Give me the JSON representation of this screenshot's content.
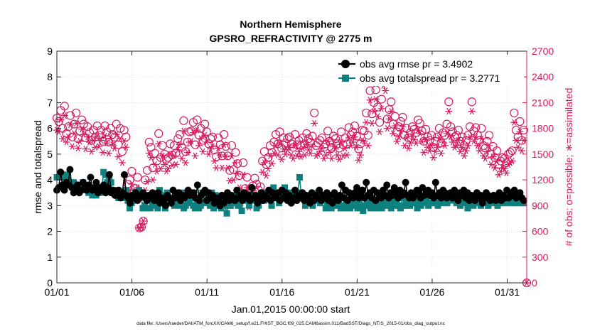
{
  "chart_data": {
    "type": "line",
    "title": "Northern Hemisphere",
    "subtitle": "GPSRO_REFRACTIVITY @ 2775 m",
    "xlabel": "Jan.01,2015 00:00:00 start",
    "ylabel_left": "rmse and totalspread",
    "ylabel_right": "# of obs: o=possible; ∗=assimilated",
    "footer": "data file: /Users/raeder/DAI/ATM_forcXX/CAM6_setup/f.e21.FHIST_BGC.f09_025.CAM6assim.011/BadSST/Diags_NTrS_2015-01/obs_diag_output.nc",
    "xlim": [
      0,
      31.3
    ],
    "ylim_left": [
      0,
      9
    ],
    "ylim_right": [
      0,
      2700
    ],
    "x_ticks": [
      0,
      5,
      10,
      15,
      20,
      25,
      30
    ],
    "x_tick_labels": [
      "01/01",
      "01/06",
      "01/11",
      "01/16",
      "01/21",
      "01/26",
      "01/31"
    ],
    "y_ticks_left": [
      "0",
      "1",
      "2",
      "3",
      "4",
      "5",
      "6",
      "7",
      "8",
      "9"
    ],
    "y_ticks_right": [
      "0",
      "300",
      "600",
      "900",
      "1200",
      "1500",
      "1800",
      "2100",
      "2400",
      "2700"
    ],
    "colors": {
      "rmse": "#000000",
      "spread": "#0f8080",
      "obs": "#d81b60"
    },
    "series": [
      {
        "name": "obs avg rmse pr = 3.4902",
        "axis": "left",
        "values": [
          3.6,
          3.7,
          4.3,
          3.8,
          3.6,
          3.9,
          3.8,
          4.4,
          3.7,
          3.5,
          3.6,
          3.8,
          3.5,
          3.6,
          3.9,
          3.7,
          3.6,
          3.8,
          4.1,
          3.6,
          3.7,
          3.9,
          3.5,
          3.7,
          3.6,
          3.8,
          3.5,
          3.7,
          4.2,
          3.5,
          3.6,
          3.4,
          3.5,
          3.6,
          3.3,
          3.5,
          4.2,
          3.4,
          3.3,
          3.1,
          3.4,
          3.3,
          3.5,
          3.2,
          3.3,
          3.4,
          3.5,
          3.3,
          3.2,
          3.4,
          3.3,
          3.5,
          3.2,
          3.3,
          3.5,
          3.1,
          3.3,
          3.2,
          3.0,
          3.4,
          3.3,
          3.1,
          3.6,
          3.3,
          3.4,
          3.5,
          3.2,
          3.4,
          3.3,
          3.4,
          3.6,
          3.4,
          3.5,
          3.5,
          3.3,
          3.8,
          3.2,
          3.4,
          3.5,
          3.6,
          3.2,
          3.5,
          3.3,
          3.4,
          3.1,
          3.3,
          3.2,
          3.0,
          3.4,
          3.1,
          3.3,
          3.5,
          3.2,
          3.4,
          3.3,
          3.2,
          3.6,
          3.3,
          3.4,
          3.2,
          3.5,
          3.3,
          3.4,
          3.2,
          3.7,
          3.3,
          3.4,
          3.1,
          3.3,
          3.5,
          3.2,
          3.4,
          3.3,
          3.6,
          3.2,
          3.5,
          3.3,
          3.4,
          3.5,
          3.2,
          3.6,
          3.3,
          3.5,
          3.2,
          3.4,
          3.1,
          3.3,
          3.6,
          3.2,
          3.4,
          3.3,
          3.5,
          3.2,
          3.4,
          3.3,
          3.1,
          3.5,
          3.2,
          3.4,
          3.3,
          3.6,
          3.2,
          3.4,
          3.3,
          3.5,
          3.2,
          3.4,
          3.1,
          3.5,
          3.3,
          3.2,
          3.4,
          3.8,
          3.3,
          3.6,
          3.2,
          3.5,
          3.4,
          3.3,
          3.5,
          3.7,
          3.3,
          3.5,
          3.6,
          3.3,
          3.9,
          3.4,
          3.5,
          3.3,
          3.6,
          3.2,
          3.5,
          3.4,
          3.3,
          3.6,
          3.4,
          3.8,
          3.3,
          3.5,
          3.4,
          3.7,
          3.5,
          3.3,
          3.6,
          3.4,
          3.5,
          3.9,
          3.4,
          3.3,
          3.5,
          3.3,
          3.4,
          3.6,
          3.5,
          3.3,
          3.7,
          3.4,
          3.5,
          3.6,
          3.4,
          3.5,
          3.3,
          3.9,
          3.4,
          3.5,
          3.3,
          3.6,
          3.5,
          3.3,
          3.4,
          3.5,
          3.3,
          3.6,
          3.4,
          3.2,
          3.5,
          3.4,
          3.6,
          3.3,
          3.5,
          3.2,
          3.4,
          3.3,
          3.2,
          3.5,
          3.3,
          3.4,
          3.1,
          3.3,
          3.5,
          3.4,
          3.2,
          3.3,
          3.4,
          3.2,
          3.3,
          3.5,
          3.2,
          3.4,
          3.3,
          3.6,
          3.3,
          3.5,
          3.4,
          3.6,
          3.3,
          3.4,
          3.5,
          3.3,
          3.2
        ]
      },
      {
        "name": "obs avg totalspread pr = 3.2771",
        "axis": "left",
        "values": [
          4.1,
          4.1,
          4.2,
          4.2,
          4.1,
          4.2,
          4.0,
          3.9,
          3.8,
          3.9,
          3.8,
          3.6,
          3.8,
          3.7,
          3.9,
          3.6,
          3.7,
          3.5,
          3.6,
          3.4,
          3.7,
          3.4,
          3.6,
          3.5,
          3.6,
          4.3,
          4.2,
          3.9,
          4.1,
          3.9,
          3.5,
          3.6,
          3.5,
          3.3,
          3.4,
          3.5,
          3.3,
          3.6,
          3.2,
          2.9,
          3.1,
          3.2,
          3.5,
          3.5,
          3.6,
          3.5,
          2.9,
          3.0,
          2.9,
          3.4,
          2.9,
          3.1,
          3.0,
          3.2,
          2.9,
          3.6,
          3.4,
          3.2,
          2.9,
          3.5,
          3.1,
          3.3,
          3.2,
          3.0,
          3.5,
          3.2,
          3.0,
          3.5,
          2.9,
          3.0,
          3.2,
          3.1,
          3.3,
          3.0,
          2.9,
          3.1,
          2.9,
          3.0,
          3.5,
          3.1,
          3.2,
          3.3,
          3.0,
          3.5,
          2.9,
          3.4,
          3.0,
          3.1,
          2.9,
          3.3,
          3.0,
          2.7,
          3.3,
          3.0,
          3.4,
          3.1,
          3.2,
          3.0,
          3.5,
          2.8,
          3.4,
          3.2,
          3.3,
          3.0,
          3.4,
          3.2,
          3.3,
          2.9,
          3.0,
          3.2,
          3.5,
          3.2,
          3.3,
          3.3,
          3.5,
          3.0,
          3.7,
          3.3,
          3.5,
          3.1,
          3.3,
          3.6,
          3.7,
          3.3,
          3.5,
          3.3,
          3.2,
          3.4,
          3.2,
          3.5,
          4.1,
          3.3,
          3.4,
          3.0,
          3.3,
          3.2,
          3.4,
          3.0,
          3.3,
          3.2,
          3.5,
          3.1,
          3.3,
          3.2,
          2.9,
          3.0,
          3.2,
          2.9,
          3.0,
          3.1,
          3.0,
          3.2,
          2.9,
          3.0,
          2.9,
          3.1,
          3.0,
          2.9,
          3.0,
          3.2,
          3.0,
          2.9,
          3.1,
          3.0,
          2.8,
          3.0,
          3.2,
          3.0,
          2.9,
          3.1,
          3.0,
          2.9,
          3.1,
          3.0,
          2.9,
          3.2,
          3.0,
          3.0,
          3.1,
          2.9,
          3.2,
          3.0,
          3.1,
          3.0,
          2.9,
          3.3,
          3.0,
          3.1,
          3.2,
          3.0,
          3.1,
          3.3,
          3.1,
          2.9,
          3.2,
          3.0,
          3.3,
          3.1,
          3.2,
          3.0,
          3.1,
          3.4,
          3.1,
          3.2,
          3.0,
          3.3,
          3.1,
          3.2,
          3.3,
          3.1,
          3.2,
          3.3,
          3.5,
          3.2,
          3.1,
          3.3,
          3.0,
          3.2,
          3.4,
          3.1,
          2.9,
          3.2,
          3.1,
          3.0,
          3.2,
          3.1,
          3.2,
          3.0,
          3.3,
          3.1,
          3.2,
          3.0,
          3.1,
          3.2,
          3.3,
          3.1,
          3.0,
          3.2,
          3.1,
          3.2,
          3.1,
          3.4,
          3.2,
          3.1,
          3.3,
          3.1,
          3.2,
          3.2,
          3.1,
          3.2,
          3.1
        ]
      },
      {
        "name": "obs possible",
        "axis": "right",
        "values": [
          1920,
          1880,
          2010,
          1800,
          2060,
          1740,
          1820,
          1950,
          1700,
          1850,
          1980,
          1680,
          1770,
          1900,
          1850,
          1690,
          1820,
          1750,
          1660,
          1780,
          1700,
          1830,
          1720,
          1780,
          1650,
          1830,
          1760,
          1640,
          1800,
          1730,
          1700,
          1850,
          1610,
          1800,
          1530,
          1780,
          1700,
          1150,
          1200,
          1300,
          1050,
          1100,
          1230,
          640,
          650,
          720,
          1200,
          1310,
          1640,
          1580,
          1340,
          1510,
          1420,
          1740,
          1460,
          1600,
          1500,
          1440,
          1460,
          1620,
          1490,
          1600,
          1510,
          1680,
          1730,
          1580,
          1890,
          1530,
          1640,
          1760,
          1770,
          1870,
          1610,
          1900,
          1720,
          1800,
          1660,
          1850,
          1760,
          1620,
          1680,
          1700,
          1550,
          1470,
          1690,
          1610,
          1480,
          1730,
          1590,
          1480,
          1310,
          1600,
          1320,
          1520,
          1390,
          1250,
          1050,
          1400,
          1100,
          1230,
          1020,
          1100,
          1130,
          1220,
          1150,
          1080,
          1120,
          1420,
          1530,
          1380,
          1460,
          1600,
          1520,
          1640,
          1730,
          1620,
          1760,
          1570,
          1690,
          1630,
          1680,
          1700,
          1620,
          1580,
          1730,
          1610,
          1660,
          1600,
          1690,
          1620,
          1740,
          1680,
          1640,
          1710,
          1980,
          1600,
          1630,
          1660,
          1690,
          1580,
          1620,
          1770,
          1650,
          1580,
          1710,
          1680,
          1620,
          1570,
          1760,
          1610,
          1690,
          1620,
          1810,
          1720,
          1760,
          1830,
          1710,
          1560,
          1620,
          1780,
          1770,
          1980,
          1720,
          2240,
          1970,
          2100,
          2250,
          2050,
          1870,
          2140,
          2400,
          2360,
          1910,
          2020,
          2110,
          1850,
          1940,
          1760,
          1820,
          1880,
          1930,
          1720,
          1800,
          1690,
          1750,
          1820,
          1790,
          1750,
          1900,
          1860,
          1770,
          1650,
          1790,
          1700,
          1660,
          1720,
          1580,
          1650,
          1700,
          1800,
          1630,
          1750,
          1720,
          1850,
          2110,
          1820,
          1760,
          1700,
          1720,
          1780,
          1650,
          1700,
          1600,
          1660,
          1720,
          1820,
          2110,
          1770,
          1810,
          1720,
          1660,
          1800,
          1600,
          1570,
          1650,
          1720,
          1500,
          1590,
          1460,
          1540,
          1380,
          1420,
          1460,
          1450,
          1400,
          1500,
          1520,
          1540,
          1980,
          1780,
          1700,
          1880,
          1660,
          1780
        ]
      },
      {
        "name": "obs assimilated",
        "axis": "right",
        "values": [
          1780,
          1760,
          1900,
          1680,
          1950,
          1640,
          1700,
          1840,
          1590,
          1740,
          1860,
          1570,
          1650,
          1790,
          1730,
          1560,
          1700,
          1640,
          1530,
          1660,
          1580,
          1710,
          1590,
          1660,
          1520,
          1710,
          1630,
          1510,
          1680,
          1610,
          1570,
          1730,
          1470,
          1680,
          1400,
          1650,
          1580,
          1010,
          1080,
          1150,
          960,
          980,
          1110,
          640,
          650,
          720,
          1080,
          1180,
          1510,
          1460,
          1200,
          1380,
          1300,
          1620,
          1330,
          1480,
          1380,
          1300,
          1330,
          1500,
          1370,
          1480,
          1380,
          1550,
          1610,
          1450,
          1770,
          1400,
          1520,
          1640,
          1650,
          1750,
          1480,
          1780,
          1600,
          1680,
          1530,
          1720,
          1640,
          1500,
          1560,
          1590,
          1420,
          1340,
          1570,
          1490,
          1340,
          1610,
          1470,
          1340,
          1190,
          1480,
          1200,
          1400,
          1270,
          1110,
          930,
          1260,
          980,
          1110,
          880,
          980,
          1010,
          1100,
          1020,
          950,
          1000,
          1290,
          1400,
          1250,
          1330,
          1480,
          1390,
          1510,
          1600,
          1490,
          1630,
          1440,
          1560,
          1500,
          1550,
          1580,
          1490,
          1450,
          1600,
          1480,
          1530,
          1470,
          1570,
          1490,
          1610,
          1550,
          1510,
          1590,
          1860,
          1480,
          1500,
          1530,
          1570,
          1450,
          1490,
          1650,
          1520,
          1450,
          1590,
          1560,
          1490,
          1440,
          1640,
          1480,
          1570,
          1490,
          1690,
          1600,
          1640,
          1700,
          1580,
          1430,
          1490,
          1660,
          1650,
          1870,
          1600,
          2130,
          1860,
          2000,
          2140,
          1940,
          1760,
          2030,
          2300,
          2240,
          1800,
          1910,
          2000,
          1740,
          1830,
          1650,
          1700,
          1770,
          1820,
          1600,
          1690,
          1570,
          1630,
          1710,
          1670,
          1630,
          1780,
          1740,
          1650,
          1520,
          1670,
          1580,
          1540,
          1600,
          1460,
          1530,
          1580,
          1690,
          1510,
          1640,
          1600,
          1740,
          2000,
          1700,
          1640,
          1580,
          1600,
          1660,
          1530,
          1580,
          1480,
          1540,
          1600,
          1700,
          2000,
          1650,
          1700,
          1600,
          1540,
          1680,
          1480,
          1450,
          1530,
          1600,
          1380,
          1470,
          1340,
          1420,
          1260,
          1300,
          1340,
          1330,
          1280,
          1380,
          1400,
          1420,
          1870,
          1660,
          1580,
          1760,
          1540,
          1660
        ]
      }
    ],
    "legend": {
      "position": "top-right",
      "entries": [
        "obs avg rmse pr = 3.4902",
        "obs avg totalspread pr = 3.2771"
      ]
    }
  }
}
